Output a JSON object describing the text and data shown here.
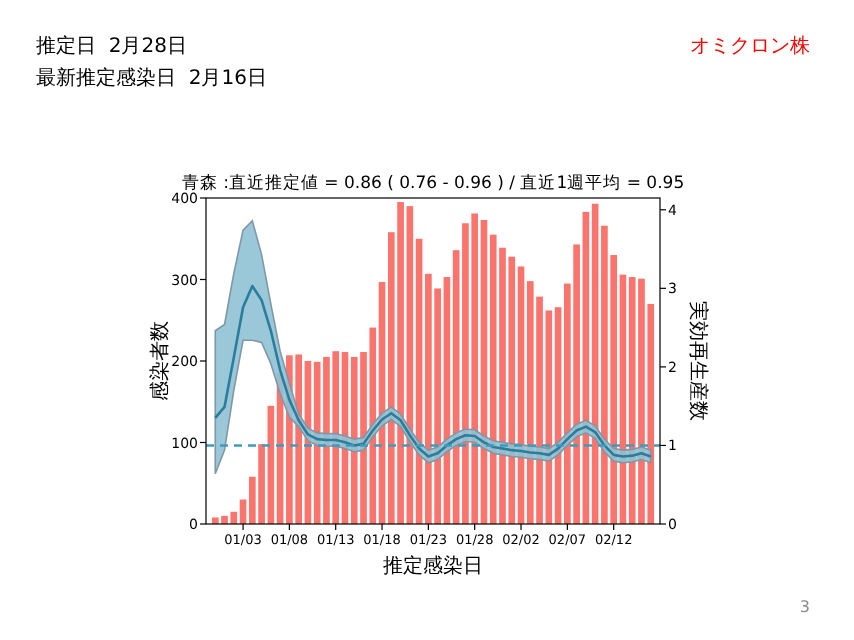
{
  "chart_data": {
    "type": "bar",
    "title": "青森 :直近推定値 = 0.86 ( 0.76 - 0.96 ) / 直近1週平均 = 0.95",
    "xlabel": "推定感染日",
    "ylabel": "感染者数",
    "y2label": "実効再生産数",
    "annotations": [
      "推定日  2月28日",
      "最新推定感染日  2月16日",
      "オミクロン株",
      "3"
    ],
    "categories": [
      null,
      null,
      null,
      "01/03",
      null,
      null,
      null,
      null,
      "01/08",
      null,
      null,
      null,
      null,
      "01/13",
      null,
      null,
      null,
      null,
      "01/18",
      null,
      null,
      null,
      null,
      "01/23",
      null,
      null,
      null,
      null,
      "01/28",
      null,
      null,
      null,
      null,
      "02/02",
      null,
      null,
      null,
      null,
      "02/07",
      null,
      null,
      null,
      null,
      "02/12",
      null,
      null,
      null,
      null
    ],
    "series": [
      {
        "color": "#f8746c",
        "values": [
          8,
          10,
          15,
          30,
          58,
          98,
          145,
          185,
          207,
          208,
          200,
          199,
          205,
          212,
          211,
          205,
          211,
          241,
          297,
          358,
          395,
          390,
          350,
          307,
          289,
          303,
          336,
          369,
          381,
          373,
          355,
          339,
          328,
          316,
          298,
          279,
          262,
          266,
          295,
          343,
          383,
          393,
          366,
          330,
          306,
          303,
          301,
          270
        ]
      },
      {
        "type": "line",
        "axis": "y2",
        "color": "#2a7d9c",
        "values": [
          1.35,
          1.49,
          2.12,
          2.76,
          3.03,
          2.85,
          2.46,
          1.96,
          1.58,
          1.32,
          1.14,
          1.08,
          1.07,
          1.07,
          1.04,
          1.0,
          1.02,
          1.19,
          1.33,
          1.41,
          1.32,
          1.13,
          0.96,
          0.86,
          0.9,
          1.0,
          1.08,
          1.13,
          1.12,
          1.04,
          0.98,
          0.96,
          0.94,
          0.93,
          0.91,
          0.9,
          0.88,
          0.96,
          1.08,
          1.19,
          1.24,
          1.17,
          1.0,
          0.88,
          0.86,
          0.87,
          0.9,
          0.86
        ],
        "upper": [
          2.46,
          2.54,
          3.19,
          3.74,
          3.86,
          3.43,
          2.8,
          2.2,
          1.79,
          1.4,
          1.22,
          1.16,
          1.15,
          1.15,
          1.12,
          1.08,
          1.1,
          1.27,
          1.41,
          1.49,
          1.4,
          1.21,
          1.04,
          0.94,
          0.98,
          1.08,
          1.16,
          1.21,
          1.2,
          1.12,
          1.06,
          1.04,
          1.02,
          1.01,
          0.99,
          0.98,
          0.96,
          1.04,
          1.16,
          1.27,
          1.32,
          1.25,
          1.08,
          0.96,
          0.94,
          0.95,
          0.98,
          0.94
        ],
        "lower": [
          0.64,
          0.94,
          1.7,
          2.34,
          2.34,
          2.31,
          2.04,
          1.66,
          1.36,
          1.24,
          1.06,
          1.0,
          0.99,
          0.99,
          0.96,
          0.92,
          0.94,
          1.11,
          1.25,
          1.33,
          1.24,
          1.05,
          0.88,
          0.78,
          0.82,
          0.92,
          1.0,
          1.05,
          1.04,
          0.96,
          0.9,
          0.88,
          0.86,
          0.85,
          0.83,
          0.82,
          0.8,
          0.88,
          1.0,
          1.11,
          1.16,
          1.09,
          0.92,
          0.8,
          0.78,
          0.79,
          0.82,
          0.78
        ]
      }
    ],
    "ylim": [
      0,
      400
    ],
    "yticks": [
      0,
      100,
      200,
      300,
      400
    ],
    "y2lim": [
      0,
      4.15
    ],
    "y2ticks": [
      0,
      1,
      2,
      3,
      4
    ],
    "ref_lines": [
      {
        "axis": "y2",
        "value": 1,
        "color": "#3a9cc0",
        "line_style": "dashed"
      }
    ]
  }
}
